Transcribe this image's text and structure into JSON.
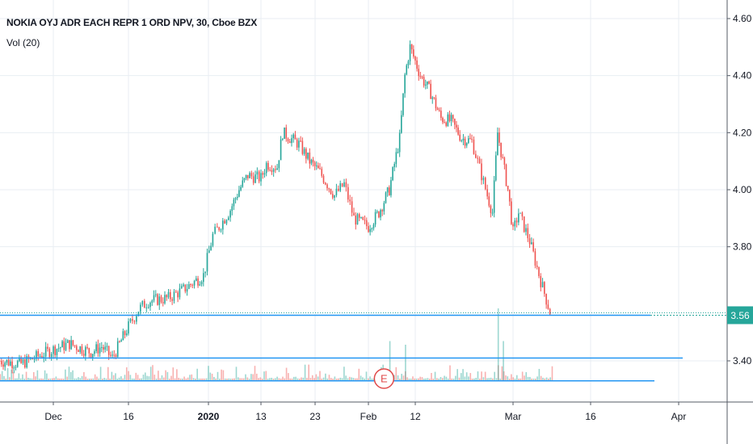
{
  "header": {
    "title": "NOKIA OYJ ADR EACH REPR 1 ORD NPV, 30, Cboe BZX",
    "indicator": "Vol (20)"
  },
  "price_badge": {
    "text": "3.56",
    "color": "#26a69a"
  },
  "earnings_marker": {
    "label": "E",
    "date": "Feb 6",
    "color": "#e04a4a"
  },
  "colors": {
    "up": "#26a69a",
    "down": "#ef5350",
    "grid": "#e8eef3",
    "hline": "#2196f3",
    "axis_text": "#131722"
  },
  "chart_data": {
    "type": "candlestick",
    "symbol": "NOKIA OYJ ADR EACH REPR 1 ORD NPV",
    "interval": "30",
    "exchange": "Cboe BZX",
    "x_ticks": [
      "Dec",
      "16",
      "2020",
      "13",
      "23",
      "Feb",
      "12",
      "Mar",
      "16",
      "Apr"
    ],
    "y_ticks": [
      "4.60",
      "4.40",
      "4.20",
      "4.00",
      "3.80",
      "3.40"
    ],
    "ylim": [
      3.22,
      4.62
    ],
    "last_price": 3.56,
    "horizontal_lines": [
      3.56,
      3.41,
      3.33
    ],
    "price_path": [
      [
        "Nov 22",
        3.4
      ],
      [
        "Nov 26",
        3.39
      ],
      [
        "Dec 2",
        3.44
      ],
      [
        "Dec 5",
        3.46
      ],
      [
        "Dec 9",
        3.43
      ],
      [
        "Dec 11",
        3.45
      ],
      [
        "Dec 13",
        3.41
      ],
      [
        "Dec 16",
        3.52
      ],
      [
        "Dec 18",
        3.58
      ],
      [
        "Dec 20",
        3.61
      ],
      [
        "Dec 24",
        3.62
      ],
      [
        "Dec 27",
        3.65
      ],
      [
        "Dec 31",
        3.7
      ],
      [
        "Jan 2",
        3.84
      ],
      [
        "Jan 3",
        3.86
      ],
      [
        "Jan 6",
        3.93
      ],
      [
        "Jan 8",
        4.0
      ],
      [
        "Jan 10",
        4.05
      ],
      [
        "Jan 13",
        4.04
      ],
      [
        "Jan 14",
        4.09
      ],
      [
        "Jan 16",
        4.08
      ],
      [
        "Jan 17",
        4.2
      ],
      [
        "Jan 20",
        4.16
      ],
      [
        "Jan 22",
        4.1
      ],
      [
        "Jan 24",
        4.06
      ],
      [
        "Jan 27",
        3.98
      ],
      [
        "Jan 29",
        4.02
      ],
      [
        "Jan 31",
        3.9
      ],
      [
        "Feb 3",
        3.87
      ],
      [
        "Feb 5",
        3.92
      ],
      [
        "Feb 7",
        4.0
      ],
      [
        "Feb 9",
        4.18
      ],
      [
        "Feb 10",
        4.4
      ],
      [
        "Feb 11",
        4.5
      ],
      [
        "Feb 13",
        4.4
      ],
      [
        "Feb 15",
        4.34
      ],
      [
        "Feb 17",
        4.25
      ],
      [
        "Feb 19",
        4.24
      ],
      [
        "Feb 21",
        4.18
      ],
      [
        "Feb 23",
        4.17
      ],
      [
        "Feb 26",
        3.98
      ],
      [
        "Feb 27",
        3.92
      ],
      [
        "Feb 28",
        4.2
      ],
      [
        "Mar 1",
        4.0
      ],
      [
        "Mar 2",
        3.85
      ],
      [
        "Mar 3",
        3.92
      ],
      [
        "Mar 5",
        3.82
      ],
      [
        "Mar 7",
        3.68
      ],
      [
        "Mar 9",
        3.55
      ]
    ],
    "volume_spikes": [
      [
        "Feb 7",
        0.55
      ],
      [
        "Feb 10",
        0.5
      ],
      [
        "Feb 28",
        1.0
      ],
      [
        "Feb 29",
        0.55
      ]
    ]
  }
}
